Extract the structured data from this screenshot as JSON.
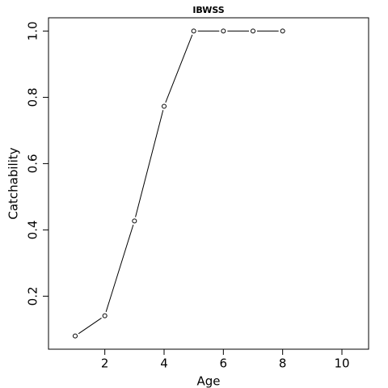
{
  "chart_data": {
    "type": "line",
    "title": "IBWSS",
    "x_label": "Age",
    "y_label": "Catchability",
    "x": [
      1,
      2,
      3,
      4,
      5,
      6,
      7,
      8
    ],
    "values": [
      0.08,
      0.141,
      0.427,
      0.773,
      1.0,
      1.0,
      1.0,
      1.0
    ],
    "color": "#000000",
    "xlim": [
      0.1,
      10.9
    ],
    "xticks": [
      2,
      4,
      6,
      8,
      10
    ],
    "ylim": [
      0.04,
      1.04
    ],
    "yticks": [
      0.2,
      0.4,
      0.6,
      0.8,
      {
        "value": 1.0,
        "label": "1.0"
      }
    ]
  }
}
